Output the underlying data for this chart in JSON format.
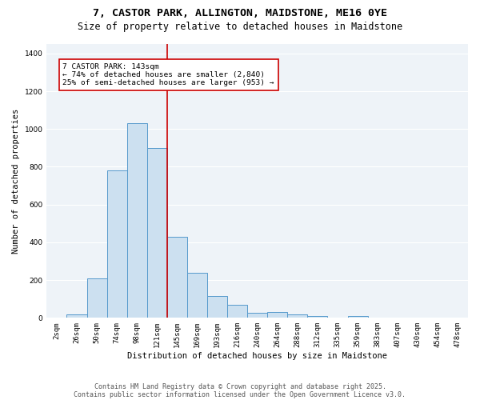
{
  "title1": "7, CASTOR PARK, ALLINGTON, MAIDSTONE, ME16 0YE",
  "title2": "Size of property relative to detached houses in Maidstone",
  "xlabel": "Distribution of detached houses by size in Maidstone",
  "ylabel": "Number of detached properties",
  "categories": [
    "2sqm",
    "26sqm",
    "50sqm",
    "74sqm",
    "98sqm",
    "121sqm",
    "145sqm",
    "169sqm",
    "193sqm",
    "216sqm",
    "240sqm",
    "264sqm",
    "288sqm",
    "312sqm",
    "335sqm",
    "359sqm",
    "383sqm",
    "407sqm",
    "430sqm",
    "454sqm",
    "478sqm"
  ],
  "values": [
    0,
    20,
    210,
    780,
    1030,
    900,
    430,
    240,
    115,
    70,
    25,
    30,
    20,
    10,
    0,
    10,
    0,
    0,
    0,
    0,
    0
  ],
  "bar_width": 1.0,
  "bar_facecolor": "#cce0f0",
  "bar_edgecolor": "#5599cc",
  "vline_color": "#cc0000",
  "annotation_text": "7 CASTOR PARK: 143sqm\n← 74% of detached houses are smaller (2,840)\n25% of semi-detached houses are larger (953) →",
  "annotation_box_color": "#ffffff",
  "annotation_box_edgecolor": "#cc0000",
  "ylim": [
    0,
    1450
  ],
  "yticks": [
    0,
    200,
    400,
    600,
    800,
    1000,
    1200,
    1400
  ],
  "bg_color": "#eef3f8",
  "grid_color": "#ffffff",
  "footer1": "Contains HM Land Registry data © Crown copyright and database right 2025.",
  "footer2": "Contains public sector information licensed under the Open Government Licence v3.0.",
  "title1_fontsize": 9.5,
  "title2_fontsize": 8.5,
  "tick_fontsize": 6.5,
  "label_fontsize": 7.5,
  "annotation_fontsize": 6.8,
  "footer_fontsize": 6.0
}
